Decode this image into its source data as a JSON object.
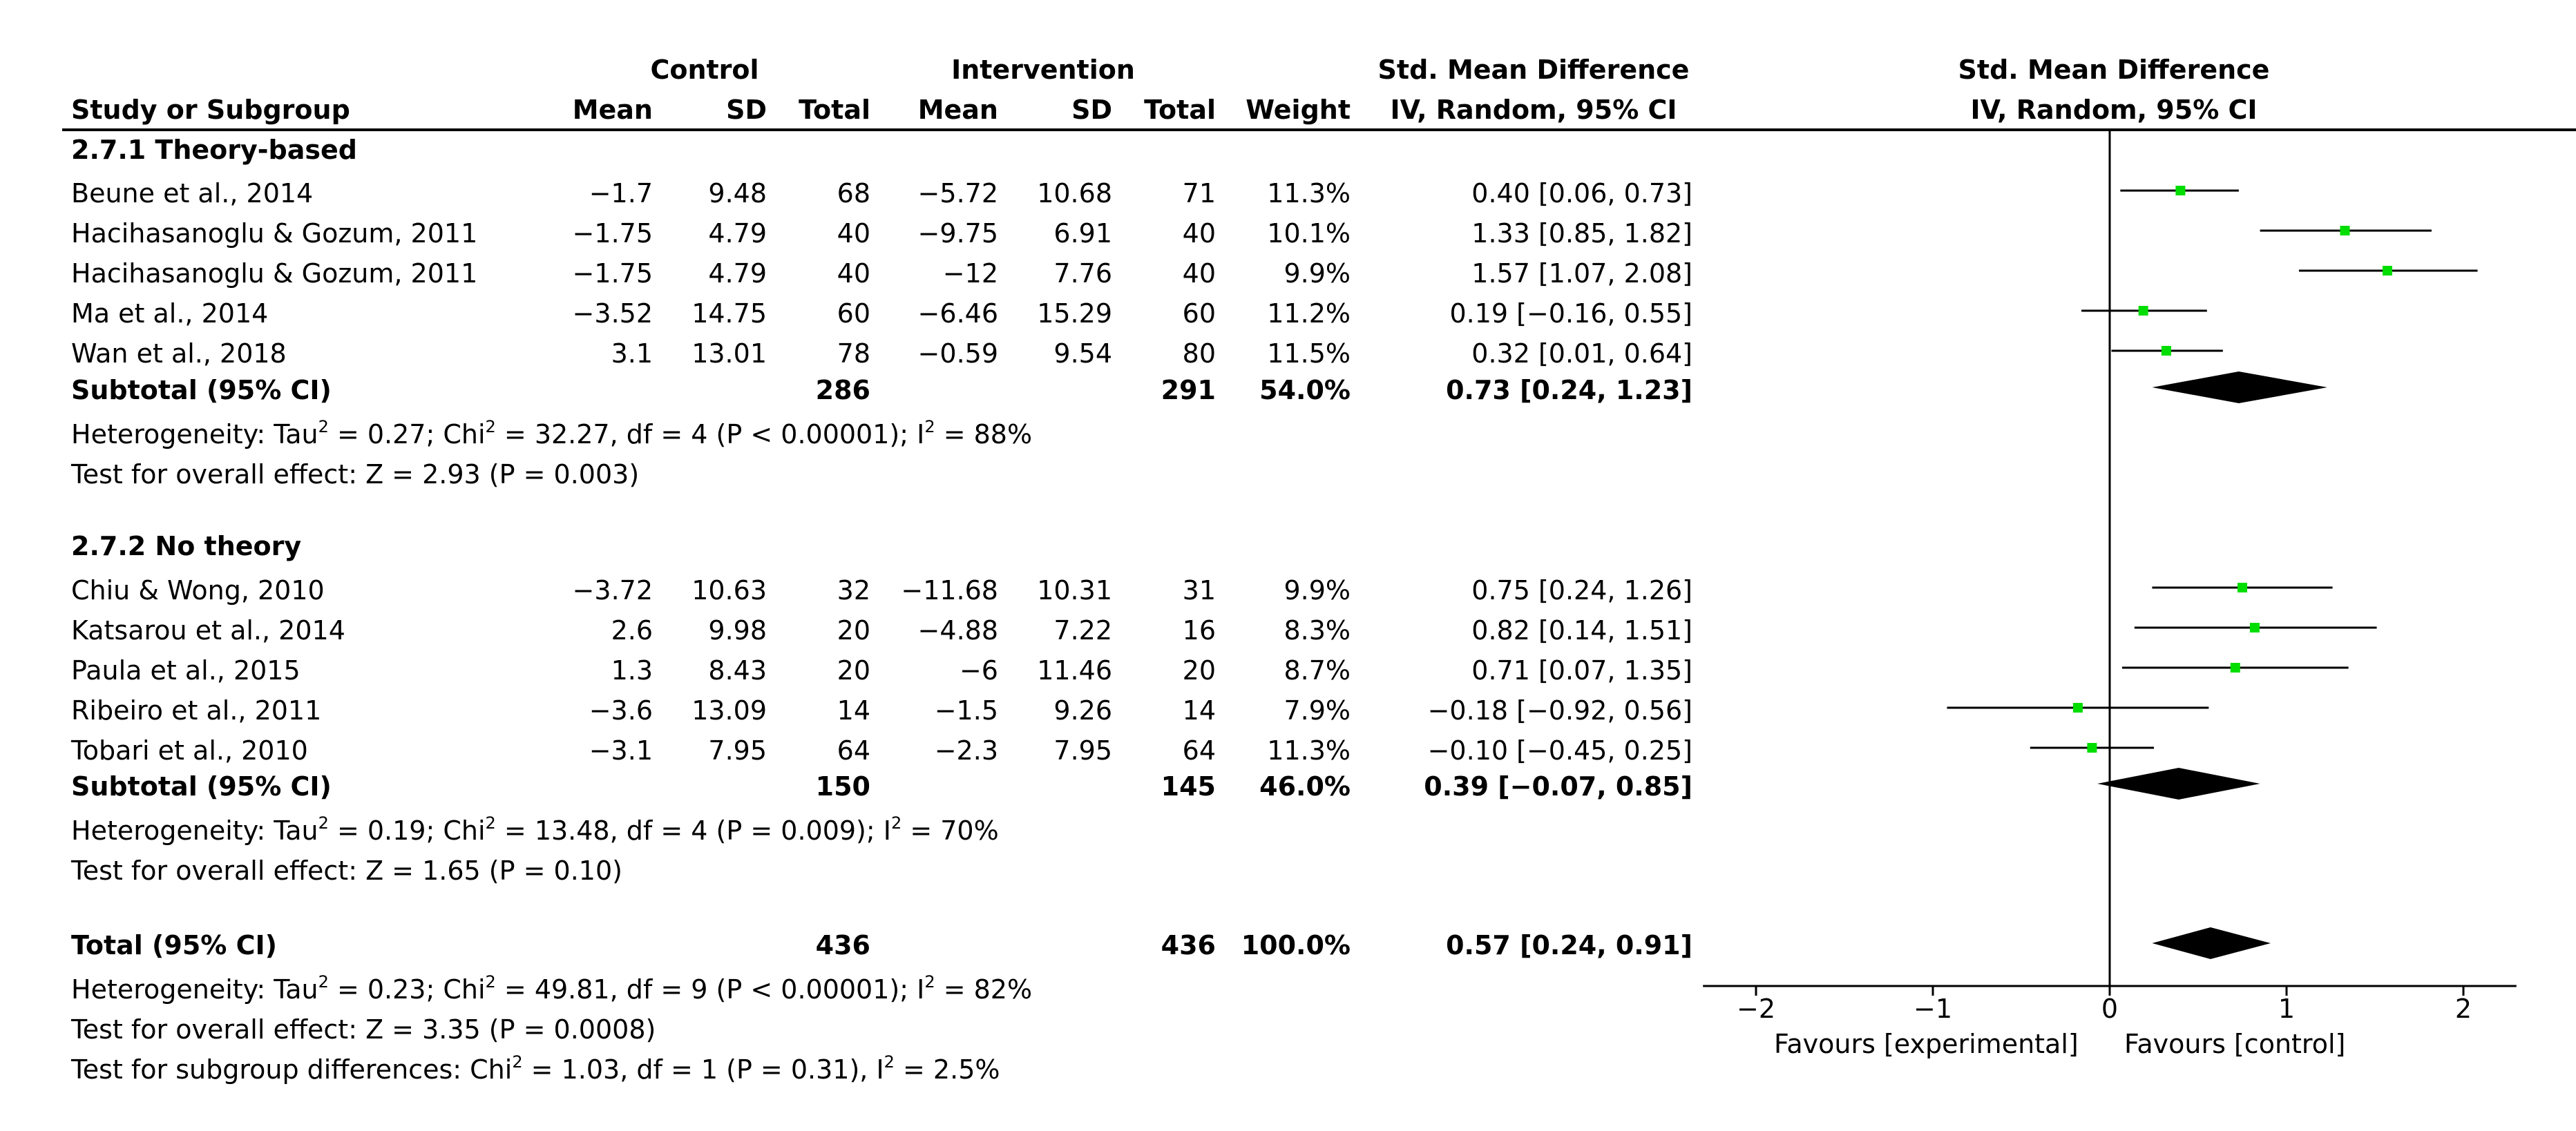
{
  "headers": {
    "control": "Control",
    "intervention": "Intervention",
    "smd_top": "Std. Mean Difference",
    "method": "IV, Random, 95% CI",
    "plot_top": "Std. Mean Difference",
    "plot_method": "IV, Random, 95% CI",
    "study": "Study or Subgroup",
    "mean": "Mean",
    "sd": "SD",
    "total": "Total",
    "weight": "Weight"
  },
  "groups": [
    {
      "title": "2.7.1 Theory-based",
      "studies": [
        {
          "name": "Beune et al., 2014",
          "cm": "−1.7",
          "csd": "9.48",
          "ct": "68",
          "im": "−5.72",
          "isd": "10.68",
          "it": "71",
          "w": "11.3%",
          "ci": "0.40 [0.06, 0.73]"
        },
        {
          "name": "Hacihasanoglu & Gozum, 2011",
          "cm": "−1.75",
          "csd": "4.79",
          "ct": "40",
          "im": "−9.75",
          "isd": "6.91",
          "it": "40",
          "w": "10.1%",
          "ci": "1.33 [0.85, 1.82]"
        },
        {
          "name": "Hacihasanoglu & Gozum, 2011",
          "cm": "−1.75",
          "csd": "4.79",
          "ct": "40",
          "im": "−12",
          "isd": "7.76",
          "it": "40",
          "w": "9.9%",
          "ci": "1.57 [1.07, 2.08]"
        },
        {
          "name": "Ma et al., 2014",
          "cm": "−3.52",
          "csd": "14.75",
          "ct": "60",
          "im": "−6.46",
          "isd": "15.29",
          "it": "60",
          "w": "11.2%",
          "ci": "0.19 [−0.16, 0.55]"
        },
        {
          "name": "Wan et al., 2018",
          "cm": "3.1",
          "csd": "13.01",
          "ct": "78",
          "im": "−0.59",
          "isd": "9.54",
          "it": "80",
          "w": "11.5%",
          "ci": "0.32 [0.01, 0.64]"
        }
      ],
      "subtotal": {
        "label": "Subtotal (95% CI)",
        "ct": "286",
        "it": "291",
        "w": "54.0%",
        "ci": "0.73 [0.24, 1.23]"
      },
      "het": {
        "a": "Heterogeneity: Tau",
        "b": " = 0.27; Chi",
        "c": " = 32.27, df = 4 (P < 0.00001); I",
        "d": " = 88%"
      },
      "effect": "Test for overall effect: Z = 2.93 (P = 0.003)"
    },
    {
      "title": "2.7.2 No theory",
      "studies": [
        {
          "name": "Chiu & Wong, 2010",
          "cm": "−3.72",
          "csd": "10.63",
          "ct": "32",
          "im": "−11.68",
          "isd": "10.31",
          "it": "31",
          "w": "9.9%",
          "ci": "0.75 [0.24, 1.26]"
        },
        {
          "name": "Katsarou et al., 2014",
          "cm": "2.6",
          "csd": "9.98",
          "ct": "20",
          "im": "−4.88",
          "isd": "7.22",
          "it": "16",
          "w": "8.3%",
          "ci": "0.82 [0.14, 1.51]"
        },
        {
          "name": "Paula et al., 2015",
          "cm": "1.3",
          "csd": "8.43",
          "ct": "20",
          "im": "−6",
          "isd": "11.46",
          "it": "20",
          "w": "8.7%",
          "ci": "0.71 [0.07, 1.35]"
        },
        {
          "name": "Ribeiro et al., 2011",
          "cm": "−3.6",
          "csd": "13.09",
          "ct": "14",
          "im": "−1.5",
          "isd": "9.26",
          "it": "14",
          "w": "7.9%",
          "ci": "−0.18 [−0.92, 0.56]"
        },
        {
          "name": "Tobari et al., 2010",
          "cm": "−3.1",
          "csd": "7.95",
          "ct": "64",
          "im": "−2.3",
          "isd": "7.95",
          "it": "64",
          "w": "11.3%",
          "ci": "−0.10 [−0.45, 0.25]"
        }
      ],
      "subtotal": {
        "label": "Subtotal (95% CI)",
        "ct": "150",
        "it": "145",
        "w": "46.0%",
        "ci": "0.39 [−0.07, 0.85]"
      },
      "het": {
        "a": "Heterogeneity: Tau",
        "b": " = 0.19; Chi",
        "c": " = 13.48, df = 4 (P = 0.009); I",
        "d": " = 70%"
      },
      "effect": "Test for overall effect: Z = 1.65 (P = 0.10)"
    }
  ],
  "total": {
    "label": "Total (95% CI)",
    "ct": "436",
    "it": "436",
    "w": "100.0%",
    "ci": "0.57 [0.24, 0.91]",
    "het": {
      "a": "Heterogeneity: Tau",
      "b": " = 0.23; Chi",
      "c": " = 49.81, df = 9 (P < 0.00001); I",
      "d": " = 82%"
    },
    "effect": "Test for overall effect: Z = 3.35 (P = 0.0008)",
    "subgroup": {
      "a": "Test for subgroup differences: Chi",
      "b": " = 1.03, df = 1 (P = 0.31), I",
      "c": " = 2.5%"
    }
  },
  "sup2": "2",
  "axis": {
    "favours_left": "Favours [experimental]",
    "favours_right": "Favours [control]"
  },
  "colors": {
    "marker": "#00dd00",
    "line": "#000000",
    "diamond": "#000000"
  },
  "chart_data": {
    "type": "forest",
    "title": "Std. Mean Difference IV, Random, 95% CI",
    "xlim": [
      -2.3,
      2.3
    ],
    "ticks": [
      -2,
      -1,
      0,
      1,
      2
    ],
    "tick_labels": [
      "−2",
      "−1",
      "0",
      "1",
      "2"
    ],
    "points": [
      {
        "label": "Beune et al., 2014",
        "est": 0.4,
        "lo": 0.06,
        "hi": 0.73
      },
      {
        "label": "Hacihasanoglu & Gozum, 2011",
        "est": 1.33,
        "lo": 0.85,
        "hi": 1.82
      },
      {
        "label": "Hacihasanoglu & Gozum, 2011",
        "est": 1.57,
        "lo": 1.07,
        "hi": 2.08
      },
      {
        "label": "Ma et al., 2014",
        "est": 0.19,
        "lo": -0.16,
        "hi": 0.55
      },
      {
        "label": "Wan et al., 2018",
        "est": 0.32,
        "lo": 0.01,
        "hi": 0.64
      },
      {
        "label": "Chiu & Wong, 2010",
        "est": 0.75,
        "lo": 0.24,
        "hi": 1.26
      },
      {
        "label": "Katsarou et al., 2014",
        "est": 0.82,
        "lo": 0.14,
        "hi": 1.51
      },
      {
        "label": "Paula et al., 2015",
        "est": 0.71,
        "lo": 0.07,
        "hi": 1.35
      },
      {
        "label": "Ribeiro et al., 2011",
        "est": -0.18,
        "lo": -0.92,
        "hi": 0.56
      },
      {
        "label": "Tobari et al., 2010",
        "est": -0.1,
        "lo": -0.45,
        "hi": 0.25
      }
    ],
    "diamonds": [
      {
        "label": "Subtotal 2.7.1",
        "est": 0.73,
        "lo": 0.24,
        "hi": 1.23
      },
      {
        "label": "Subtotal 2.7.2",
        "est": 0.39,
        "lo": -0.07,
        "hi": 0.85
      },
      {
        "label": "Total",
        "est": 0.57,
        "lo": 0.24,
        "hi": 0.91
      }
    ]
  }
}
